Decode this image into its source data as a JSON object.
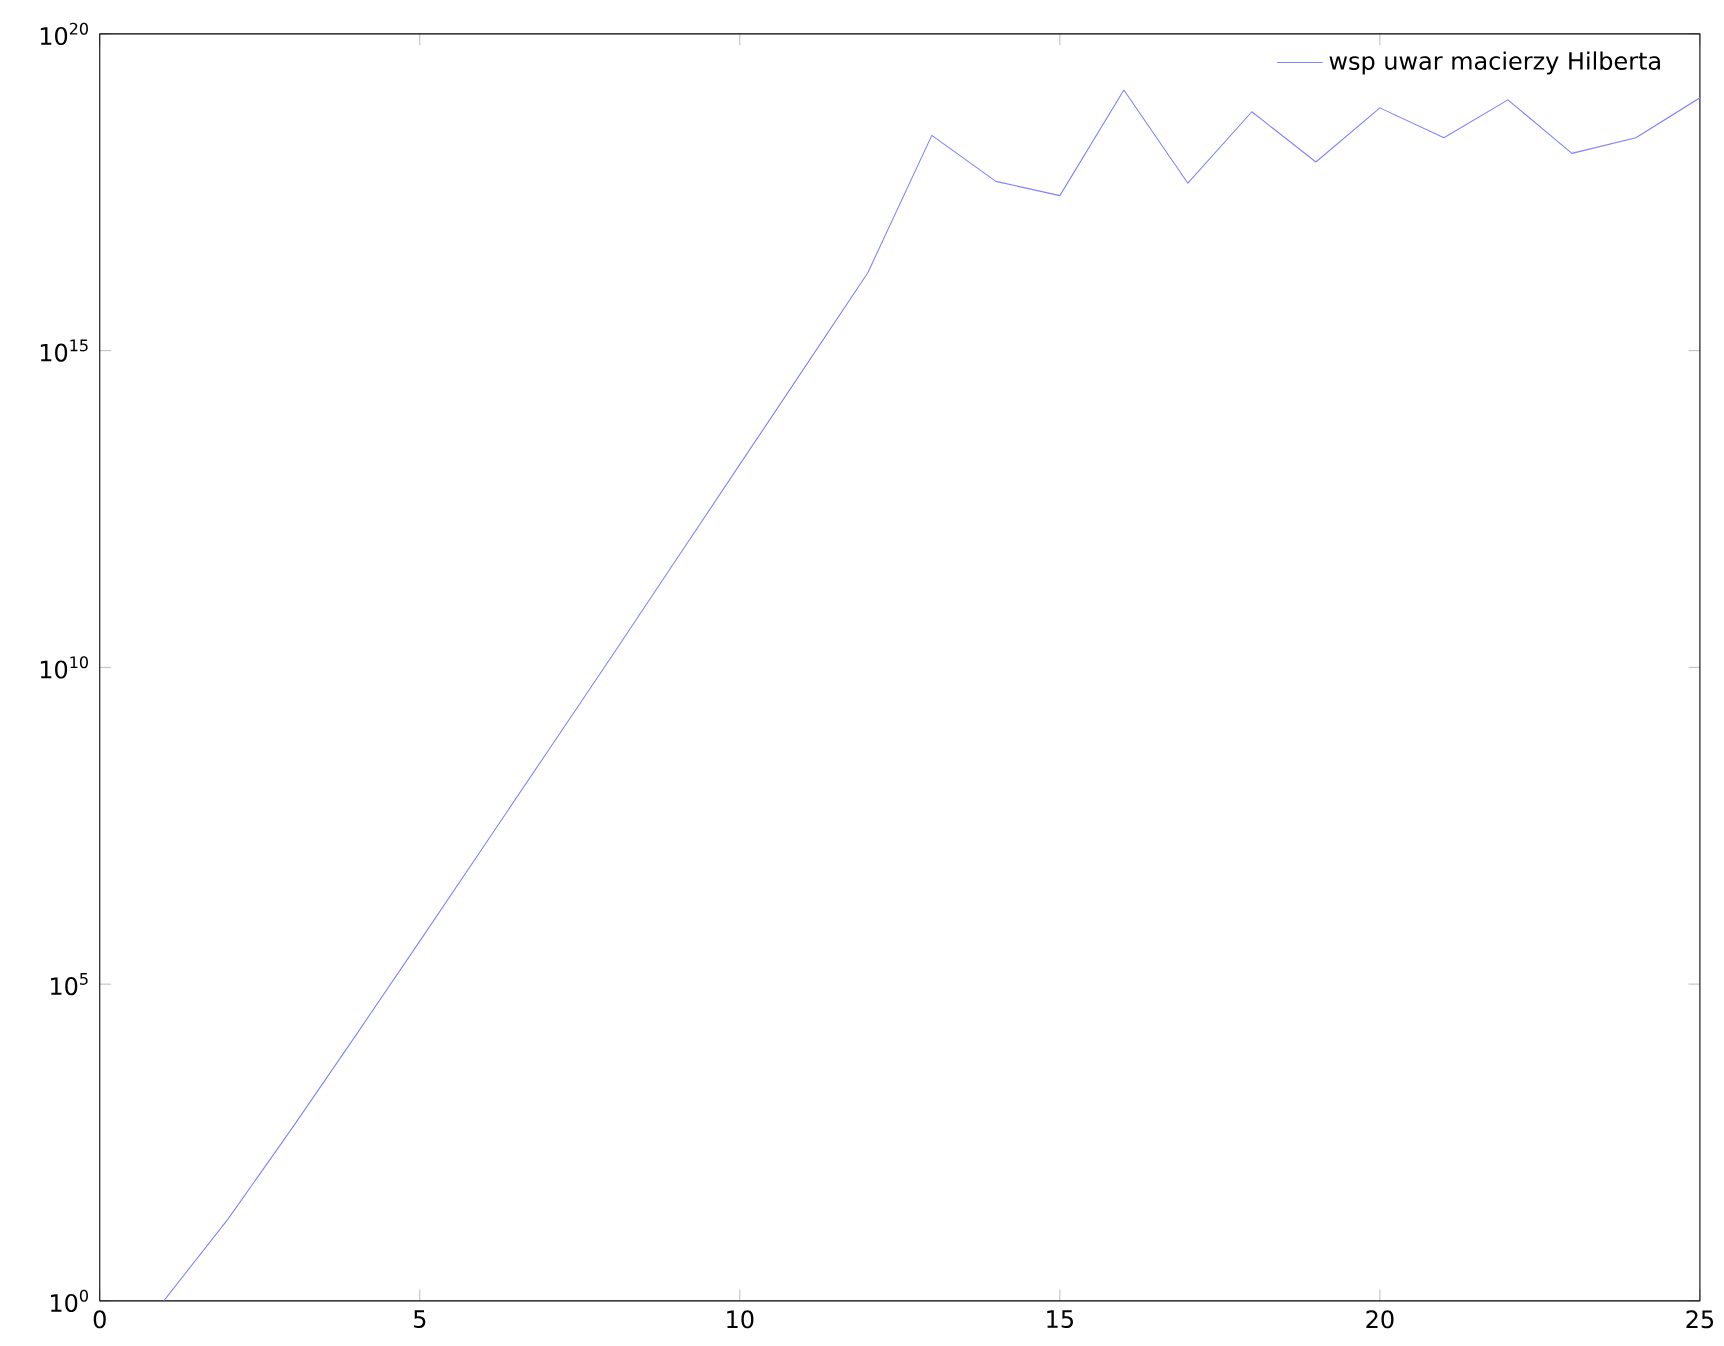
{
  "chart_data": {
    "type": "line",
    "log": "y",
    "legend": "top right",
    "x": [
      1,
      2,
      3,
      4,
      5,
      6,
      7,
      8,
      9,
      10,
      11,
      12,
      13,
      14,
      15,
      16,
      17,
      18,
      19,
      20,
      21,
      22,
      23,
      24,
      25
    ],
    "series": [
      {
        "name": "wsp uwar macierzy Hilberta",
        "color": "#8080ff",
        "values": [
          1,
          19.3,
          524,
          15514,
          477000.0,
          15000000.0,
          475000000.0,
          15000000000.0,
          490000000000.0,
          16000000000000.0,
          520000000000000.0,
          1.7e+16,
          2.5e+18,
          4.7e+17,
          2.8e+17,
          1.3e+19,
          4.4e+17,
          5.9e+18,
          9.5e+17,
          6.8e+18,
          2.3e+18,
          9.1e+18,
          1.3e+18,
          2.3e+18,
          9.8e+18
        ]
      }
    ],
    "xlim": [
      0,
      25
    ],
    "ylim": [
      1,
      1e+20
    ],
    "xticks": [
      0,
      5,
      10,
      15,
      20,
      25
    ],
    "yticks": [
      {
        "value": 1,
        "label": "10$^{0}$"
      },
      {
        "value": 100000.0,
        "label": "10$^{5}$"
      },
      {
        "value": 10000000000.0,
        "label": "10$^{10}$"
      },
      {
        "value": 1000000000000000.0,
        "label": "10$^{15}$"
      },
      {
        "value": 1e+20,
        "label": "10$^{20}$"
      }
    ]
  }
}
